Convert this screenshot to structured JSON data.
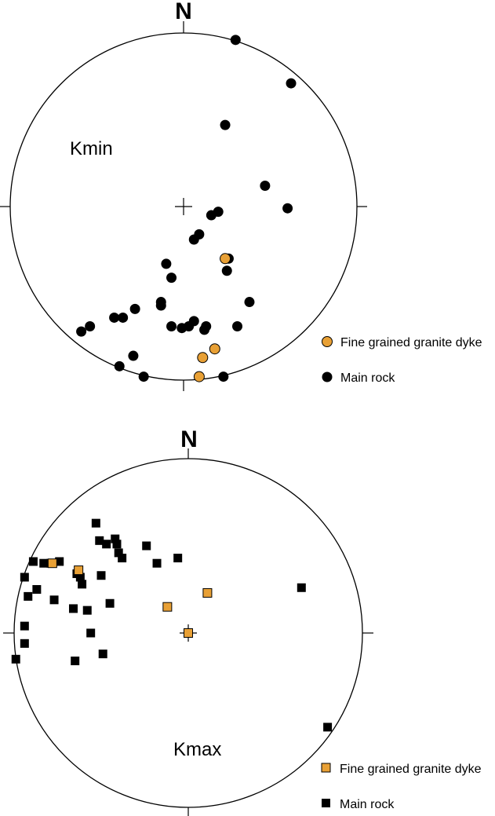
{
  "colors": {
    "dyke": "#e8a035",
    "main": "#000000"
  },
  "plots": [
    {
      "id": "kmin",
      "north_label": "N",
      "plot_label": "Kmin",
      "marker": "circle",
      "legend": [
        {
          "label": "Fine grained granite dyke",
          "series": "dyke"
        },
        {
          "label": "Main rock",
          "series": "main"
        }
      ],
      "points": {
        "main": [
          [
            0.3,
            0.96
          ],
          [
            0.62,
            0.71
          ],
          [
            0.24,
            0.47
          ],
          [
            0.47,
            0.12
          ],
          [
            0.6,
            -0.01
          ],
          [
            0.2,
            -0.03
          ],
          [
            0.16,
            -0.05
          ],
          [
            0.09,
            -0.16
          ],
          [
            0.06,
            -0.19
          ],
          [
            0.26,
            -0.3
          ],
          [
            0.25,
            -0.37
          ],
          [
            -0.1,
            -0.33
          ],
          [
            -0.07,
            -0.41
          ],
          [
            0.38,
            -0.55
          ],
          [
            -0.13,
            -0.55
          ],
          [
            -0.13,
            -0.57
          ],
          [
            0.06,
            -0.66
          ],
          [
            0.03,
            -0.69
          ],
          [
            0.13,
            -0.69
          ],
          [
            0.12,
            -0.71
          ],
          [
            -0.07,
            -0.69
          ],
          [
            -0.01,
            -0.7
          ],
          [
            0.31,
            -0.69
          ],
          [
            -0.28,
            -0.59
          ],
          [
            -0.35,
            -0.64
          ],
          [
            -0.4,
            -0.64
          ],
          [
            -0.54,
            -0.69
          ],
          [
            -0.59,
            -0.72
          ],
          [
            -0.29,
            -0.86
          ],
          [
            -0.37,
            -0.92
          ],
          [
            -0.23,
            -0.98
          ],
          [
            0.23,
            -0.98
          ]
        ],
        "dyke": [
          [
            0.24,
            -0.3
          ],
          [
            0.18,
            -0.82
          ],
          [
            0.11,
            -0.87
          ],
          [
            0.09,
            -0.98
          ]
        ]
      }
    },
    {
      "id": "kmax",
      "north_label": "N",
      "plot_label": "Kmax",
      "marker": "square",
      "legend": [
        {
          "label": "Fine grained granite dyke",
          "series": "dyke"
        },
        {
          "label": "Main rock",
          "series": "main"
        }
      ],
      "points": {
        "main": [
          [
            -0.53,
            0.63
          ],
          [
            -0.51,
            0.53
          ],
          [
            -0.47,
            0.51
          ],
          [
            -0.42,
            0.54
          ],
          [
            -0.41,
            0.51
          ],
          [
            -0.4,
            0.46
          ],
          [
            -0.38,
            0.43
          ],
          [
            -0.24,
            0.5
          ],
          [
            -0.18,
            0.4
          ],
          [
            -0.06,
            0.43
          ],
          [
            -0.89,
            0.41
          ],
          [
            -0.79,
            0.4
          ],
          [
            -0.74,
            0.41
          ],
          [
            -0.83,
            0.4
          ],
          [
            -0.64,
            0.34
          ],
          [
            -0.62,
            0.32
          ],
          [
            -0.61,
            0.28
          ],
          [
            -0.5,
            0.33
          ],
          [
            -0.94,
            0.32
          ],
          [
            -0.87,
            0.25
          ],
          [
            -0.92,
            0.21
          ],
          [
            -0.77,
            0.19
          ],
          [
            -0.66,
            0.14
          ],
          [
            -0.58,
            0.13
          ],
          [
            -0.45,
            0.17
          ],
          [
            -0.94,
            0.04
          ],
          [
            -0.94,
            -0.06
          ],
          [
            -0.56,
            0.0
          ],
          [
            -0.49,
            -0.12
          ],
          [
            -0.65,
            -0.16
          ],
          [
            -0.99,
            -0.15
          ],
          [
            0.65,
            0.26
          ],
          [
            0.8,
            -0.54
          ]
        ],
        "dyke": [
          [
            -0.78,
            0.4
          ],
          [
            -0.63,
            0.36
          ],
          [
            0.11,
            0.23
          ],
          [
            -0.12,
            0.15
          ],
          [
            0.0,
            0.0
          ]
        ]
      }
    }
  ]
}
